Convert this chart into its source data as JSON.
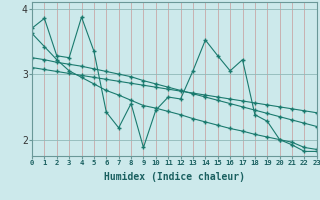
{
  "xlabel": "Humidex (Indice chaleur)",
  "bg_color": "#cce9eb",
  "line_color": "#1a7a6e",
  "grid_color_major": "#b0d0d0",
  "grid_color_minor": "#c8e2e2",
  "axis_color": "#6a9898",
  "xlim": [
    0,
    23
  ],
  "ylim": [
    1.75,
    4.1
  ],
  "yticks": [
    2,
    3,
    4
  ],
  "xticks": [
    0,
    1,
    2,
    3,
    4,
    5,
    6,
    7,
    8,
    9,
    10,
    11,
    12,
    13,
    14,
    15,
    16,
    17,
    18,
    19,
    20,
    21,
    22,
    23
  ],
  "series": [
    [
      3.7,
      3.85,
      3.28,
      3.25,
      3.87,
      3.35,
      2.42,
      2.18,
      2.55,
      1.88,
      2.45,
      2.65,
      2.62,
      3.05,
      3.52,
      3.28,
      3.05,
      3.22,
      2.38,
      2.28,
      2.0,
      1.92,
      1.82,
      1.82
    ],
    [
      3.62,
      3.42,
      3.22,
      3.05,
      2.95,
      2.85,
      2.75,
      2.68,
      2.6,
      2.52,
      2.48,
      2.43,
      2.38,
      2.32,
      2.27,
      2.22,
      2.17,
      2.13,
      2.08,
      2.04,
      2.0,
      1.96,
      1.88,
      1.85
    ],
    [
      3.25,
      3.22,
      3.18,
      3.15,
      3.12,
      3.08,
      3.04,
      3.0,
      2.96,
      2.9,
      2.85,
      2.8,
      2.75,
      2.7,
      2.65,
      2.6,
      2.55,
      2.5,
      2.45,
      2.4,
      2.35,
      2.3,
      2.25,
      2.2
    ],
    [
      3.1,
      3.07,
      3.04,
      3.01,
      2.98,
      2.95,
      2.92,
      2.89,
      2.86,
      2.83,
      2.8,
      2.77,
      2.74,
      2.71,
      2.68,
      2.65,
      2.62,
      2.59,
      2.56,
      2.53,
      2.5,
      2.47,
      2.44,
      2.41
    ]
  ]
}
